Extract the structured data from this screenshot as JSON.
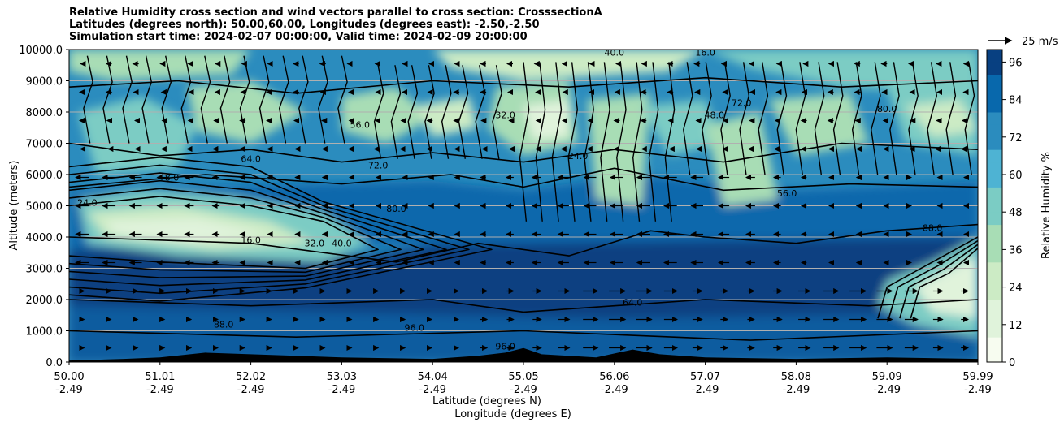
{
  "chart_data": {
    "type": "contour",
    "title_lines": [
      "Relative Humidity cross section and wind vectors parallel to cross section: CrosssectionA",
      "Latitudes (degrees north): 50.00,60.00, Longitudes (degrees east): -2.50,-2.50",
      "Simulation start time: 2024-02-07 00:00:00, Valid time: 2024-02-09 20:00:00"
    ],
    "xlabel_lines": [
      "Latitude (degrees N)",
      "Longitude (degrees E)"
    ],
    "ylabel": "Altitude (meters)",
    "colorbar_label": "Relative Humidity %",
    "quiver_key_label": "25 m/s",
    "x_ticks": [
      {
        "lat": "50.00",
        "lon": "-2.49"
      },
      {
        "lat": "51.01",
        "lon": "-2.49"
      },
      {
        "lat": "52.02",
        "lon": "-2.49"
      },
      {
        "lat": "53.03",
        "lon": "-2.49"
      },
      {
        "lat": "54.04",
        "lon": "-2.49"
      },
      {
        "lat": "55.05",
        "lon": "-2.49"
      },
      {
        "lat": "56.06",
        "lon": "-2.49"
      },
      {
        "lat": "57.07",
        "lon": "-2.49"
      },
      {
        "lat": "58.08",
        "lon": "-2.49"
      },
      {
        "lat": "59.09",
        "lon": "-2.49"
      },
      {
        "lat": "59.99",
        "lon": "-2.49"
      }
    ],
    "y_ticks": [
      "0.0",
      "1000.0",
      "2000.0",
      "3000.0",
      "4000.0",
      "5000.0",
      "6000.0",
      "7000.0",
      "8000.0",
      "9000.0",
      "10000.0"
    ],
    "ylim": [
      0,
      10000
    ],
    "colorbar_ticks": [
      "0",
      "12",
      "24",
      "36",
      "48",
      "60",
      "72",
      "84",
      "96"
    ],
    "colorbar_range": [
      0,
      100
    ],
    "colormap": "GnBu",
    "colormap_stops": [
      "#f7fcf0",
      "#e0f3db",
      "#ccebc5",
      "#a8ddb5",
      "#7bccc4",
      "#4eb3d3",
      "#2b8cbe",
      "#0868ac",
      "#084081"
    ],
    "contour_labels": [
      "16.0",
      "24.0",
      "32.0",
      "40.0",
      "48.0",
      "56.0",
      "64.0",
      "72.0",
      "80.0",
      "88.0",
      "96.0"
    ],
    "grid": "horizontal",
    "terrain": "black mountains along the bottom"
  }
}
